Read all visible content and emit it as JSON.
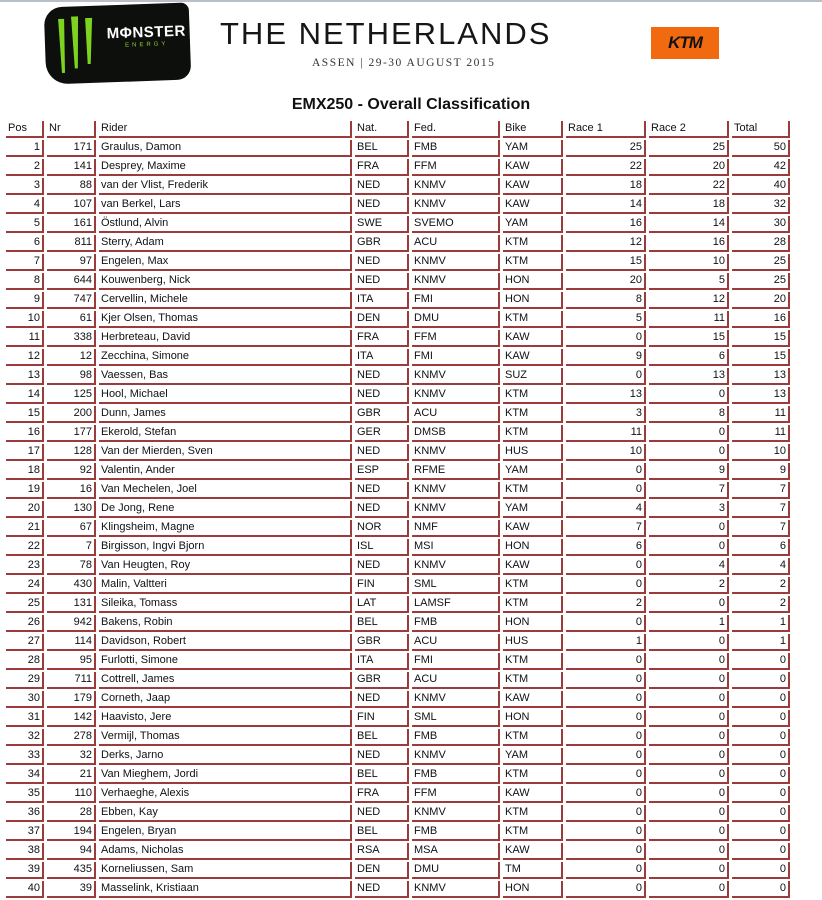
{
  "banner": {
    "sponsor_logo": "MONSTER ENERGY",
    "event_title": "THE NETHERLANDS",
    "event_subtitle": "ASSEN | 29-30 AUGUST 2015",
    "brand_logo": "KTM",
    "colors": {
      "ktm": "#f26a10",
      "monster_green": "#8ccc3c",
      "grid": "#9b3b3b"
    }
  },
  "title": "EMX250 - Overall Classification",
  "columns": [
    "Pos",
    "Nr",
    "Rider",
    "Nat.",
    "Fed.",
    "Bike",
    "Race 1",
    "Race 2",
    "Total"
  ],
  "rows": [
    [
      "1",
      "171",
      "Graulus, Damon",
      "BEL",
      "FMB",
      "YAM",
      "25",
      "25",
      "50"
    ],
    [
      "2",
      "141",
      "Desprey, Maxime",
      "FRA",
      "FFM",
      "KAW",
      "22",
      "20",
      "42"
    ],
    [
      "3",
      "88",
      "van der Vlist, Frederik",
      "NED",
      "KNMV",
      "KAW",
      "18",
      "22",
      "40"
    ],
    [
      "4",
      "107",
      "van Berkel, Lars",
      "NED",
      "KNMV",
      "KAW",
      "14",
      "18",
      "32"
    ],
    [
      "5",
      "161",
      "Östlund, Alvin",
      "SWE",
      "SVEMO",
      "YAM",
      "16",
      "14",
      "30"
    ],
    [
      "6",
      "811",
      "Sterry, Adam",
      "GBR",
      "ACU",
      "KTM",
      "12",
      "16",
      "28"
    ],
    [
      "7",
      "97",
      "Engelen, Max",
      "NED",
      "KNMV",
      "KTM",
      "15",
      "10",
      "25"
    ],
    [
      "8",
      "644",
      "Kouwenberg, Nick",
      "NED",
      "KNMV",
      "HON",
      "20",
      "5",
      "25"
    ],
    [
      "9",
      "747",
      "Cervellin, Michele",
      "ITA",
      "FMI",
      "HON",
      "8",
      "12",
      "20"
    ],
    [
      "10",
      "61",
      "Kjer Olsen, Thomas",
      "DEN",
      "DMU",
      "KTM",
      "5",
      "11",
      "16"
    ],
    [
      "11",
      "338",
      "Herbreteau, David",
      "FRA",
      "FFM",
      "KAW",
      "0",
      "15",
      "15"
    ],
    [
      "12",
      "12",
      "Zecchina, Simone",
      "ITA",
      "FMI",
      "KAW",
      "9",
      "6",
      "15"
    ],
    [
      "13",
      "98",
      "Vaessen, Bas",
      "NED",
      "KNMV",
      "SUZ",
      "0",
      "13",
      "13"
    ],
    [
      "14",
      "125",
      "Hool, Michael",
      "NED",
      "KNMV",
      "KTM",
      "13",
      "0",
      "13"
    ],
    [
      "15",
      "200",
      "Dunn, James",
      "GBR",
      "ACU",
      "KTM",
      "3",
      "8",
      "11"
    ],
    [
      "16",
      "177",
      "Ekerold, Stefan",
      "GER",
      "DMSB",
      "KTM",
      "11",
      "0",
      "11"
    ],
    [
      "17",
      "128",
      "Van der Mierden, Sven",
      "NED",
      "KNMV",
      "HUS",
      "10",
      "0",
      "10"
    ],
    [
      "18",
      "92",
      "Valentin, Ander",
      "ESP",
      "RFME",
      "YAM",
      "0",
      "9",
      "9"
    ],
    [
      "19",
      "16",
      "Van Mechelen, Joel",
      "NED",
      "KNMV",
      "KTM",
      "0",
      "7",
      "7"
    ],
    [
      "20",
      "130",
      "De Jong, Rene",
      "NED",
      "KNMV",
      "YAM",
      "4",
      "3",
      "7"
    ],
    [
      "21",
      "67",
      "Klingsheim, Magne",
      "NOR",
      "NMF",
      "KAW",
      "7",
      "0",
      "7"
    ],
    [
      "22",
      "7",
      "Birgisson, Ingvi Bjorn",
      "ISL",
      "MSI",
      "HON",
      "6",
      "0",
      "6"
    ],
    [
      "23",
      "78",
      "Van Heugten, Roy",
      "NED",
      "KNMV",
      "KAW",
      "0",
      "4",
      "4"
    ],
    [
      "24",
      "430",
      "Malin, Valtteri",
      "FIN",
      "SML",
      "KTM",
      "0",
      "2",
      "2"
    ],
    [
      "25",
      "131",
      "Sileika, Tomass",
      "LAT",
      "LAMSF",
      "KTM",
      "2",
      "0",
      "2"
    ],
    [
      "26",
      "942",
      "Bakens, Robin",
      "BEL",
      "FMB",
      "HON",
      "0",
      "1",
      "1"
    ],
    [
      "27",
      "114",
      "Davidson, Robert",
      "GBR",
      "ACU",
      "HUS",
      "1",
      "0",
      "1"
    ],
    [
      "28",
      "95",
      "Furlotti, Simone",
      "ITA",
      "FMI",
      "KTM",
      "0",
      "0",
      "0"
    ],
    [
      "29",
      "711",
      "Cottrell, James",
      "GBR",
      "ACU",
      "KTM",
      "0",
      "0",
      "0"
    ],
    [
      "30",
      "179",
      "Corneth, Jaap",
      "NED",
      "KNMV",
      "KAW",
      "0",
      "0",
      "0"
    ],
    [
      "31",
      "142",
      "Haavisto, Jere",
      "FIN",
      "SML",
      "HON",
      "0",
      "0",
      "0"
    ],
    [
      "32",
      "278",
      "Vermijl, Thomas",
      "BEL",
      "FMB",
      "KTM",
      "0",
      "0",
      "0"
    ],
    [
      "33",
      "32",
      "Derks, Jarno",
      "NED",
      "KNMV",
      "YAM",
      "0",
      "0",
      "0"
    ],
    [
      "34",
      "21",
      "Van Mieghem, Jordi",
      "BEL",
      "FMB",
      "KTM",
      "0",
      "0",
      "0"
    ],
    [
      "35",
      "110",
      "Verhaeghe, Alexis",
      "FRA",
      "FFM",
      "KAW",
      "0",
      "0",
      "0"
    ],
    [
      "36",
      "28",
      "Ebben, Kay",
      "NED",
      "KNMV",
      "KTM",
      "0",
      "0",
      "0"
    ],
    [
      "37",
      "194",
      "Engelen, Bryan",
      "BEL",
      "FMB",
      "KTM",
      "0",
      "0",
      "0"
    ],
    [
      "38",
      "94",
      "Adams, Nicholas",
      "RSA",
      "MSA",
      "KAW",
      "0",
      "0",
      "0"
    ],
    [
      "39",
      "435",
      "Korneliussen, Sam",
      "DEN",
      "DMU",
      "TM",
      "0",
      "0",
      "0"
    ],
    [
      "40",
      "39",
      "Masselink, Kristiaan",
      "NED",
      "KNMV",
      "HON",
      "0",
      "0",
      "0"
    ]
  ]
}
